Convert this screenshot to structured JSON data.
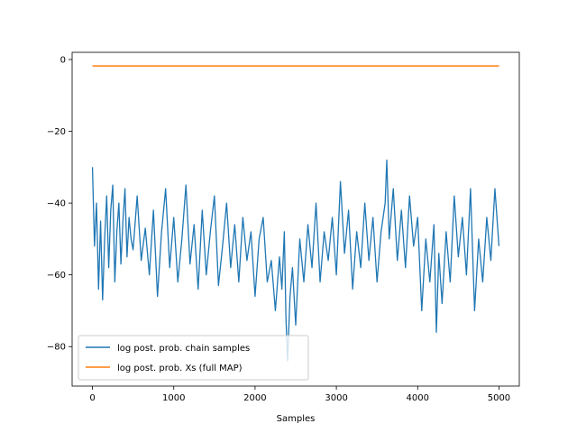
{
  "chart_data": {
    "type": "line",
    "title": "",
    "xlabel": "Samples",
    "ylabel": "",
    "xlim": [
      -250,
      5250
    ],
    "ylim": [
      -91,
      2
    ],
    "xticks": [
      0,
      1000,
      2000,
      3000,
      4000,
      5000
    ],
    "yticks": [
      0,
      -20,
      -40,
      -60,
      -80
    ],
    "xtick_labels": [
      "0",
      "1000",
      "2000",
      "3000",
      "4000",
      "5000"
    ],
    "ytick_labels": [
      "0",
      "−20",
      "−40",
      "−60",
      "−80"
    ],
    "grid": false,
    "legend_position": "lower-left",
    "series": [
      {
        "name": "log post. prob. chain samples",
        "color": "#1f77b4",
        "x": [
          0,
          25,
          50,
          75,
          100,
          125,
          150,
          175,
          200,
          225,
          250,
          275,
          300,
          325,
          350,
          375,
          400,
          425,
          450,
          475,
          500,
          550,
          600,
          650,
          700,
          750,
          800,
          850,
          900,
          950,
          1000,
          1050,
          1100,
          1150,
          1200,
          1250,
          1300,
          1350,
          1400,
          1450,
          1500,
          1550,
          1600,
          1650,
          1700,
          1750,
          1800,
          1850,
          1900,
          1950,
          2000,
          2050,
          2100,
          2150,
          2200,
          2250,
          2300,
          2330,
          2360,
          2380,
          2400,
          2430,
          2460,
          2500,
          2550,
          2600,
          2650,
          2700,
          2750,
          2800,
          2850,
          2900,
          2950,
          3000,
          3050,
          3100,
          3150,
          3200,
          3250,
          3300,
          3350,
          3400,
          3450,
          3500,
          3550,
          3600,
          3620,
          3650,
          3700,
          3750,
          3800,
          3850,
          3900,
          3950,
          4000,
          4050,
          4100,
          4150,
          4200,
          4230,
          4260,
          4300,
          4350,
          4400,
          4450,
          4500,
          4550,
          4600,
          4650,
          4700,
          4750,
          4800,
          4850,
          4900,
          4950,
          5000
        ],
        "values": [
          -30,
          -52,
          -40,
          -64,
          -45,
          -67,
          -50,
          -38,
          -58,
          -42,
          -35,
          -62,
          -48,
          -40,
          -57,
          -45,
          -36,
          -55,
          -44,
          -50,
          -53,
          -38,
          -56,
          -47,
          -60,
          -42,
          -66,
          -48,
          -36,
          -58,
          -44,
          -62,
          -50,
          -35,
          -57,
          -46,
          -64,
          -42,
          -60,
          -48,
          -38,
          -63,
          -52,
          -40,
          -58,
          -46,
          -62,
          -44,
          -56,
          -48,
          -66,
          -50,
          -44,
          -62,
          -56,
          -70,
          -55,
          -64,
          -48,
          -72,
          -84,
          -66,
          -58,
          -74,
          -50,
          -62,
          -46,
          -58,
          -40,
          -62,
          -48,
          -56,
          -44,
          -60,
          -34,
          -54,
          -42,
          -64,
          -48,
          -58,
          -40,
          -56,
          -44,
          -62,
          -48,
          -40,
          -28,
          -50,
          -36,
          -56,
          -42,
          -58,
          -38,
          -52,
          -44,
          -70,
          -50,
          -62,
          -46,
          -76,
          -54,
          -68,
          -48,
          -62,
          -38,
          -55,
          -44,
          -60,
          -36,
          -70,
          -50,
          -62,
          -44,
          -56,
          -36,
          -52
        ]
      },
      {
        "name": "log post. prob. Xs (full MAP)",
        "color": "#ff7f0e",
        "x": [
          0,
          5000
        ],
        "values": [
          -1.8,
          -1.8
        ]
      }
    ]
  }
}
